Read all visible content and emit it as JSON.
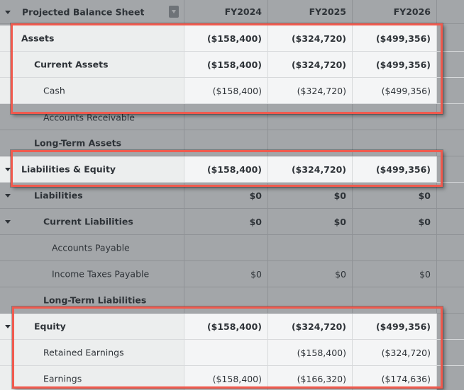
{
  "header": {
    "title": "Projected Balance Sheet",
    "columns": [
      "FY2024",
      "FY2025",
      "FY2026"
    ]
  },
  "rows": [
    {
      "label": "Assets",
      "values": [
        "($158,400)",
        "($324,720)",
        "($499,356)"
      ]
    },
    {
      "label": "Current Assets",
      "values": [
        "($158,400)",
        "($324,720)",
        "($499,356)"
      ]
    },
    {
      "label": "Cash",
      "values": [
        "($158,400)",
        "($324,720)",
        "($499,356)"
      ]
    },
    {
      "label": "Accounts Receivable",
      "values": [
        "",
        "",
        ""
      ]
    },
    {
      "label": "Long-Term Assets",
      "values": [
        "",
        "",
        ""
      ]
    },
    {
      "label": "Liabilities & Equity",
      "values": [
        "($158,400)",
        "($324,720)",
        "($499,356)"
      ]
    },
    {
      "label": "Liabilities",
      "values": [
        "$0",
        "$0",
        "$0"
      ]
    },
    {
      "label": "Current Liabilities",
      "values": [
        "$0",
        "$0",
        "$0"
      ]
    },
    {
      "label": "Accounts Payable",
      "values": [
        "",
        "",
        ""
      ]
    },
    {
      "label": "Income Taxes Payable",
      "values": [
        "$0",
        "$0",
        "$0"
      ]
    },
    {
      "label": "Long-Term Liabilities",
      "values": [
        "",
        "",
        ""
      ]
    },
    {
      "label": "Equity",
      "values": [
        "($158,400)",
        "($324,720)",
        "($499,356)"
      ]
    },
    {
      "label": "Retained Earnings",
      "values": [
        "",
        "($158,400)",
        "($324,720)"
      ]
    },
    {
      "label": "Earnings",
      "values": [
        "($158,400)",
        "($166,320)",
        "($174,636)"
      ]
    }
  ],
  "annotation": {
    "highlight_color": "#f05a4e"
  }
}
